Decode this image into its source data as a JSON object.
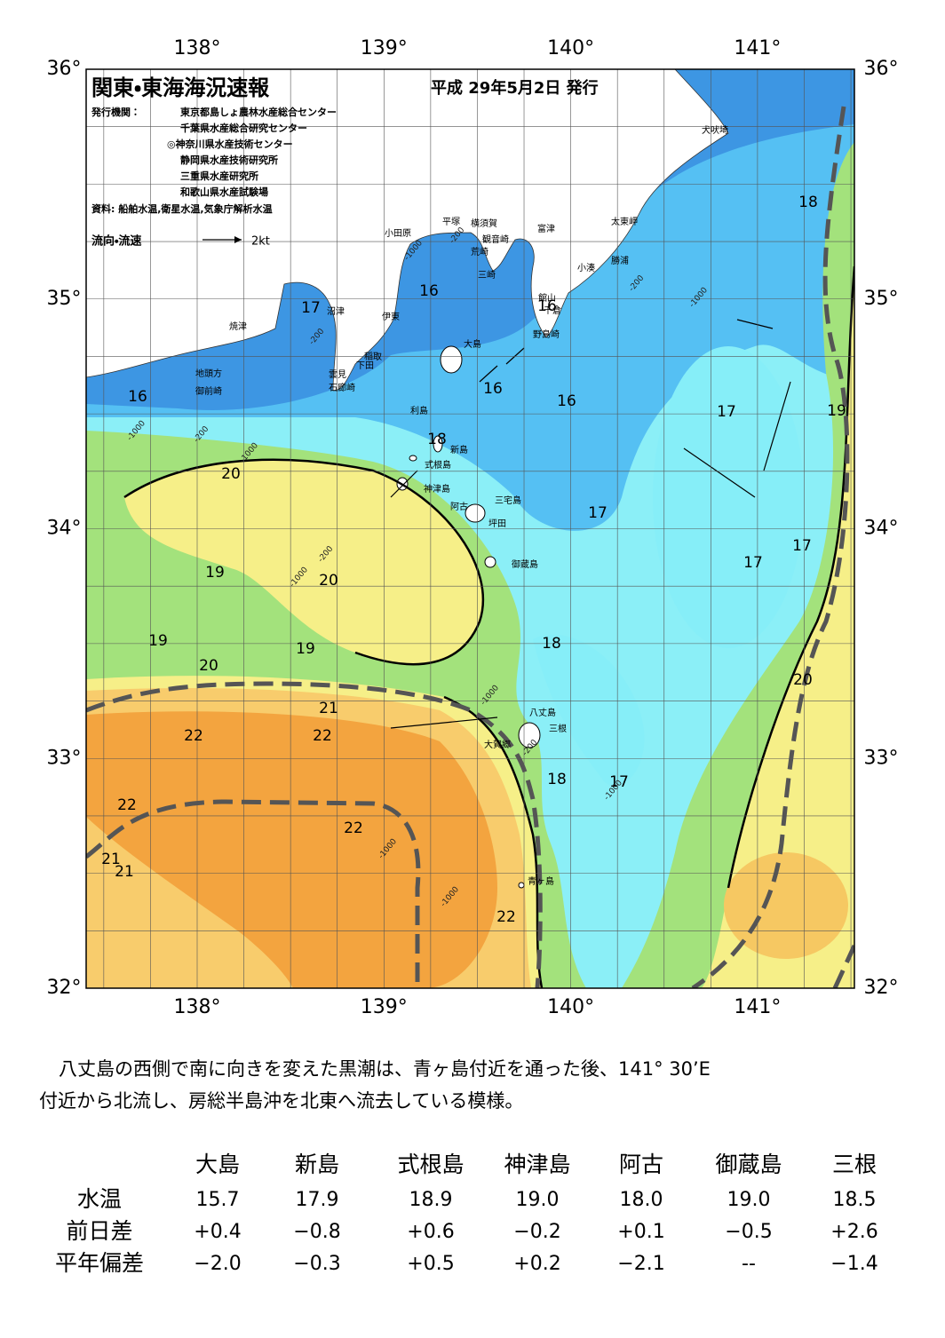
{
  "header": {
    "title": "関東・東海海況速報",
    "date": "平成 29年5月2日 発行",
    "publisher_label": "発行機関：",
    "publishers": [
      "東京都島しょ農林水産総合センター",
      "千葉県水産総合研究センター",
      "◎神奈川県水産技術センター",
      "静岡県水産技術研究所",
      "三重県水産研究所",
      "和歌山県水産試験場"
    ],
    "source": "資料: 船舶水温,衛星水温,気象庁解析水温",
    "flow_label": "流向・流速",
    "flow_scale": "2kt"
  },
  "axes": {
    "lon_labels": [
      "138°",
      "139°",
      "140°",
      "141°"
    ],
    "lat_labels": [
      "36°",
      "35°",
      "34°",
      "33°",
      "32°"
    ]
  },
  "places": [
    "犬吠埼",
    "太東岬",
    "勝浦",
    "小湊",
    "富津",
    "横須賀",
    "観音崎",
    "荒崎",
    "三崎",
    "平塚",
    "小田原",
    "館山",
    "千倉",
    "野島崎",
    "沼津",
    "伊東",
    "焼津",
    "稲取",
    "下田",
    "雲見",
    "石廊崎",
    "地頭方",
    "御前崎",
    "大島",
    "利島",
    "新島",
    "式根島",
    "神津島",
    "三宅島",
    "阿古",
    "坪田",
    "御蔵島",
    "八丈島",
    "三根",
    "大賀郷",
    "青ヶ島"
  ],
  "isotherm_labels": [
    16,
    17,
    16,
    16,
    16,
    16,
    18,
    20,
    17,
    19,
    18,
    17,
    17,
    17,
    19,
    20,
    19,
    19,
    20,
    18,
    20,
    21,
    22,
    22,
    18,
    17,
    22,
    22,
    21,
    21,
    22
  ],
  "depth_labels": [
    -200,
    -1000,
    -200,
    -1000,
    -200,
    -1000,
    -200,
    -1000,
    -1000,
    -200,
    -1000,
    -1000,
    -1000,
    -200,
    -1000
  ],
  "paragraph": [
    "八丈島の西側で南に向きを変えた黒潮は、青ヶ島付近を通った後、141° 30’E",
    "付近から北流し、房総半島沖を北東へ流去している模様。"
  ],
  "table": {
    "columns": [
      "大島",
      "新島",
      "式根島",
      "神津島",
      "阿古",
      "御蔵島",
      "三根"
    ],
    "rows": [
      {
        "label": "水温",
        "cells": [
          "15.7",
          "17.9",
          "18.9",
          "19.0",
          "18.0",
          "19.0",
          "18.5"
        ]
      },
      {
        "label": "前日差",
        "cells": [
          "+0.4",
          "−0.8",
          "+0.6",
          "−0.2",
          "+0.1",
          "−0.5",
          "+2.6"
        ]
      },
      {
        "label": "平年偏差",
        "cells": [
          "−2.0",
          "−0.3",
          "+0.5",
          "+0.2",
          "−2.1",
          "--",
          "−1.4"
        ]
      }
    ]
  }
}
